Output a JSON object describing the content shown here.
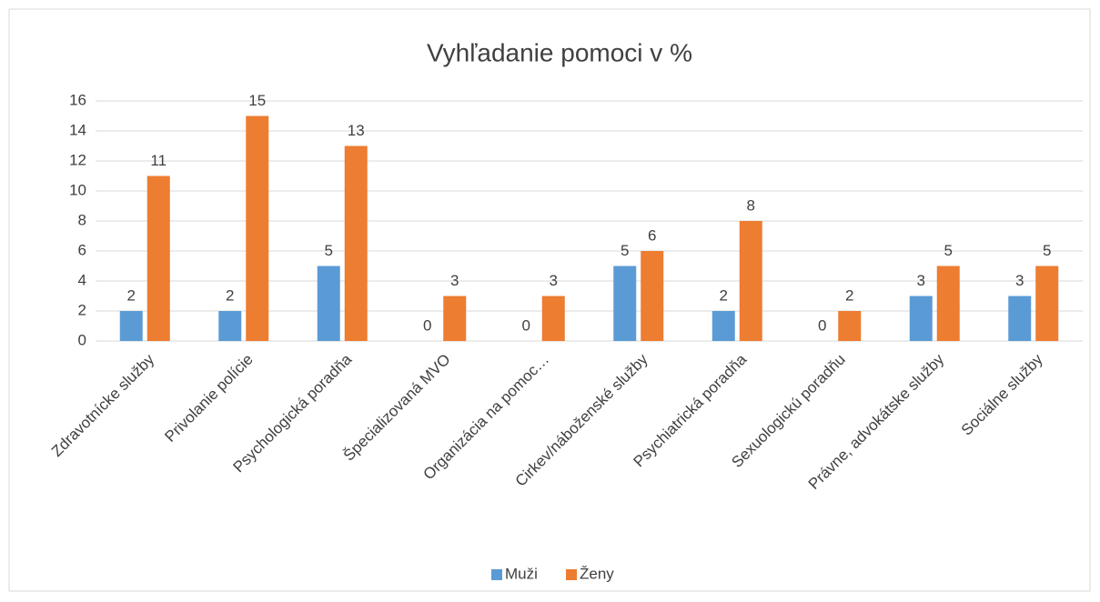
{
  "chart_data": {
    "type": "bar",
    "title": "Vyhľadanie pomoci v %",
    "categories": [
      "Zdravotnícke služby",
      "Privolanie polície",
      "Psychologická poradňa",
      "Špecializovaná MVO",
      "Organizácia na pomoc…",
      "Cirkev/náboženské služby",
      "Psychiatrická poradňa",
      "Sexuologickú poradňu",
      "Právne, advokátske služby",
      "Sociálne služby"
    ],
    "series": [
      {
        "name": "Muži",
        "color": "#5b9bd5",
        "values": [
          2,
          2,
          5,
          0,
          0,
          5,
          2,
          0,
          3,
          3
        ]
      },
      {
        "name": "Ženy",
        "color": "#ed7d31",
        "values": [
          11,
          15,
          13,
          3,
          3,
          6,
          8,
          2,
          5,
          5
        ]
      }
    ],
    "ylim": [
      0,
      16
    ],
    "yticks": [
      0,
      2,
      4,
      6,
      8,
      10,
      12,
      14,
      16
    ],
    "grid": true,
    "legend": "bottom"
  }
}
